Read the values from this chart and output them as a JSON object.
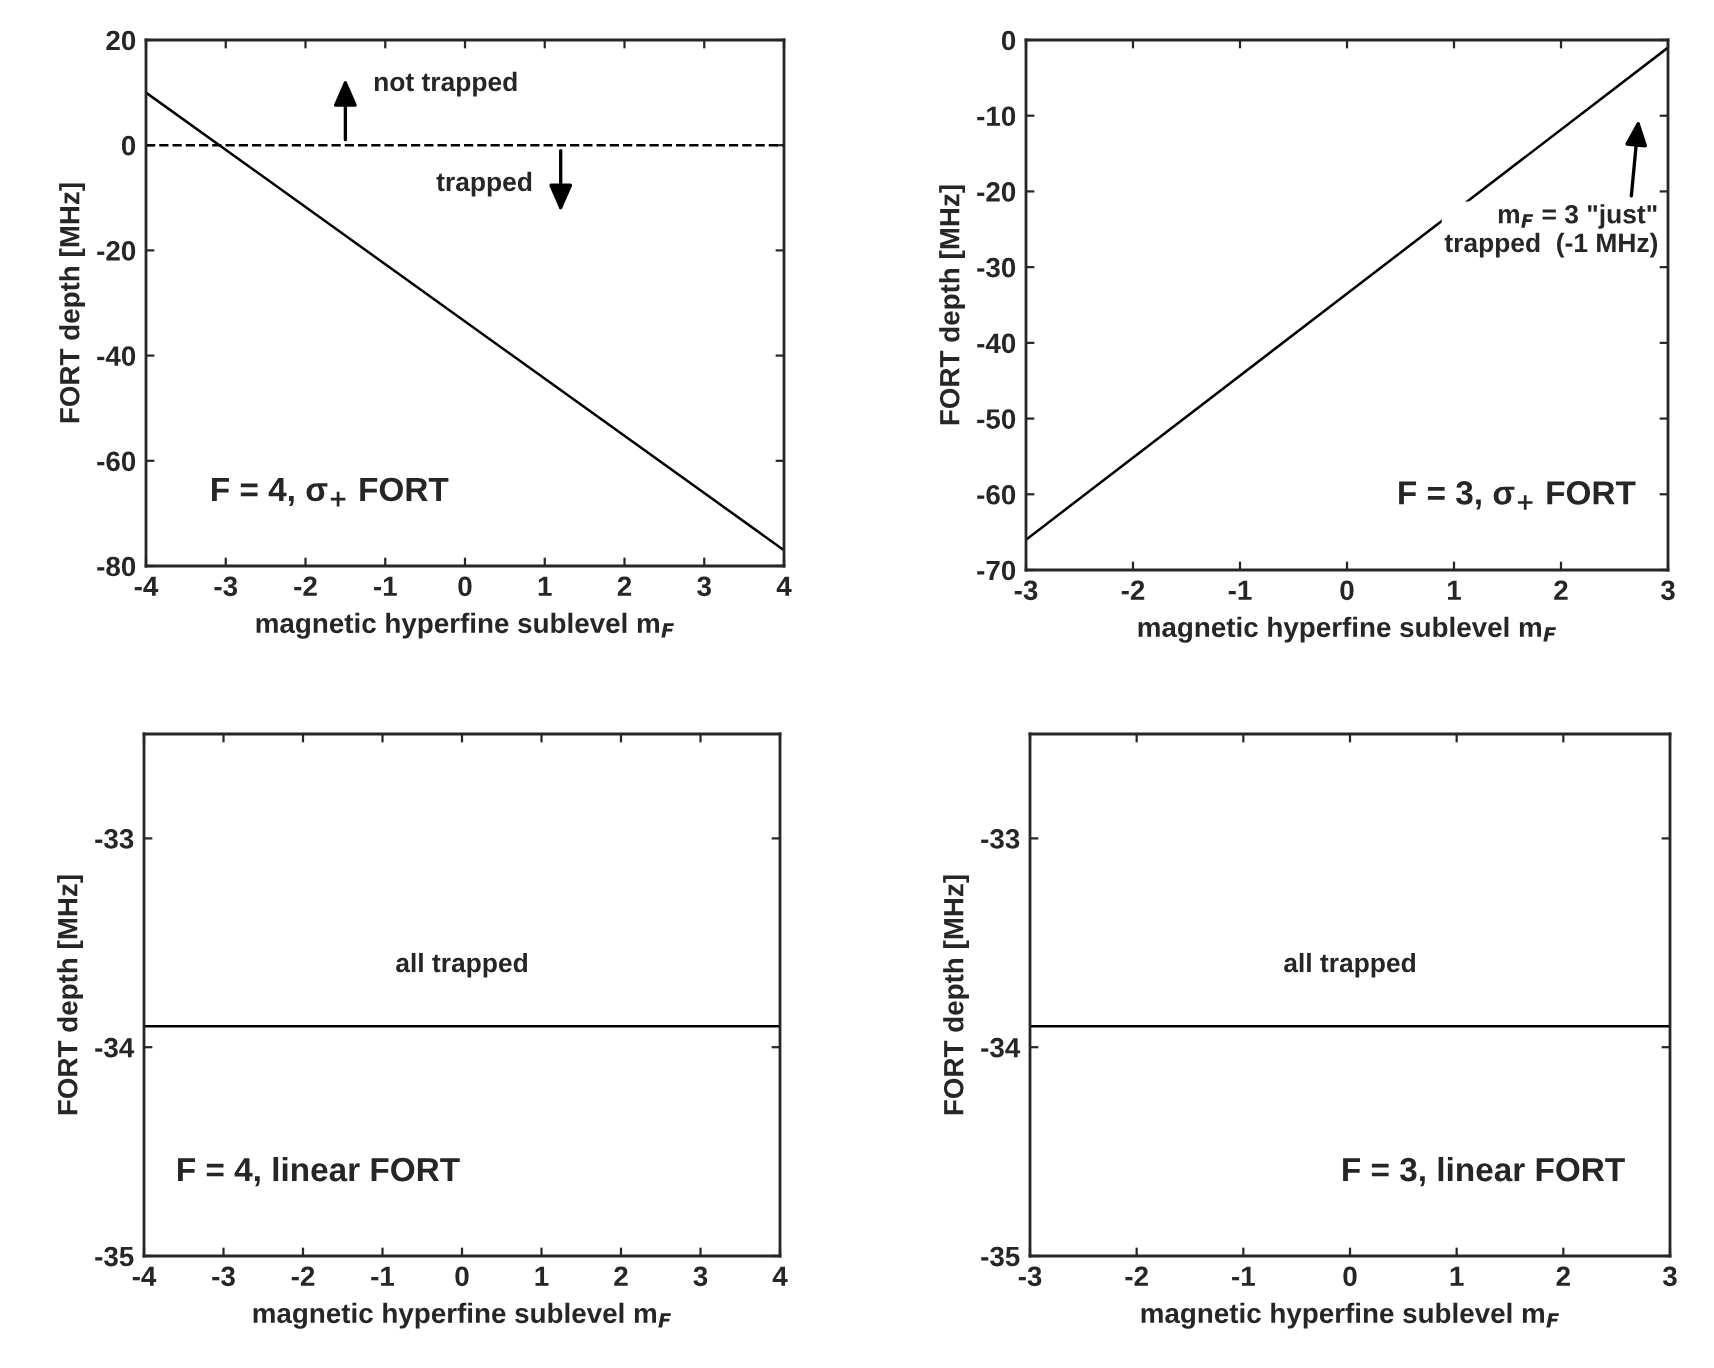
{
  "chart_data": [
    {
      "type": "line",
      "x": [
        -4,
        4
      ],
      "values": [
        10,
        -77
      ],
      "color": "#000000",
      "xlabel": "magnetic hyperfine sublevel m$_{F}$",
      "ylabel": "FORT depth [MHz]",
      "xlim": [
        -4,
        4
      ],
      "xticks": [
        -4,
        -3,
        -2,
        -1,
        0,
        1,
        2,
        3,
        4
      ],
      "ylim": [
        -80,
        20
      ],
      "yticks": [
        -80,
        -60,
        -40,
        -20,
        0,
        20
      ],
      "ref_lines": [
        {
          "axis": "y",
          "value": 0,
          "line_style": "dashed",
          "color": "#000000"
        }
      ],
      "annotations": [
        {
          "text": "not trapped",
          "x": -1.5,
          "y": 0
        },
        {
          "text": "trapped",
          "x": 1.2,
          "y": 0
        },
        "F = 4, σ$_{+}$ FORT"
      ]
    },
    {
      "type": "line",
      "x": [
        -3,
        3
      ],
      "values": [
        -66,
        -1
      ],
      "color": "#000000",
      "xlabel": "magnetic hyperfine sublevel m$_{F}$",
      "ylabel": "FORT depth [MHz]",
      "xlim": [
        -3,
        3
      ],
      "xticks": [
        -3,
        -2,
        -1,
        0,
        1,
        2,
        3
      ],
      "ylim": [
        -70,
        0
      ],
      "yticks": [
        -70,
        -60,
        -50,
        -40,
        -30,
        -20,
        -10,
        0
      ],
      "annotations": [
        "m$_{F}$ = 3 \"just\"\ntrapped  (-1 MHz)",
        "F = 3, σ$_{+}$ FORT"
      ]
    },
    {
      "type": "line",
      "x": [
        -4,
        4
      ],
      "values": [
        -33.9,
        -33.9
      ],
      "color": "#000000",
      "xlabel": "magnetic hyperfine sublevel m$_{F}$",
      "ylabel": "FORT depth [MHz]",
      "xlim": [
        -4,
        4
      ],
      "xticks": [
        -4,
        -3,
        -2,
        -1,
        0,
        1,
        2,
        3,
        4
      ],
      "ylim": [
        -35,
        -32.5
      ],
      "yticks": [
        -35,
        -34,
        -33
      ],
      "annotations": [
        {
          "text": "all trapped",
          "x": 0,
          "y": -33.9
        },
        "F = 4, linear FORT"
      ]
    },
    {
      "type": "line",
      "x": [
        -3,
        3
      ],
      "values": [
        -33.9,
        -33.9
      ],
      "color": "#000000",
      "xlabel": "magnetic hyperfine sublevel m$_{F}$",
      "ylabel": "FORT depth [MHz]",
      "xlim": [
        -3,
        3
      ],
      "xticks": [
        -3,
        -2,
        -1,
        0,
        1,
        2,
        3
      ],
      "ylim": [
        -35,
        -32.5
      ],
      "yticks": [
        -35,
        -34,
        -33
      ],
      "annotations": [
        {
          "text": "all trapped",
          "x": 0,
          "y": -33.9
        },
        "F = 3, linear FORT"
      ]
    }
  ]
}
